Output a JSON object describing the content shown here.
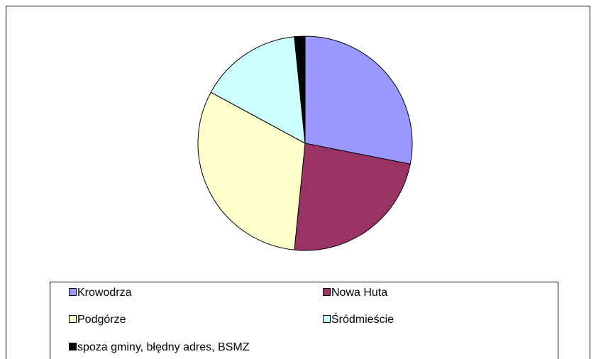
{
  "chart_data": {
    "type": "pie",
    "categories": [
      "Krowodrza",
      "Nowa Huta",
      "Podgórze",
      "Śródmieście",
      "spoza gminy, błędny adres, BSMZ"
    ],
    "values": [
      28.1,
      23.5,
      31.3,
      15.5,
      1.6
    ],
    "colors": [
      "#9999ff",
      "#993366",
      "#ffffcc",
      "#ccffff",
      "#000000"
    ],
    "legend": "bottom"
  }
}
